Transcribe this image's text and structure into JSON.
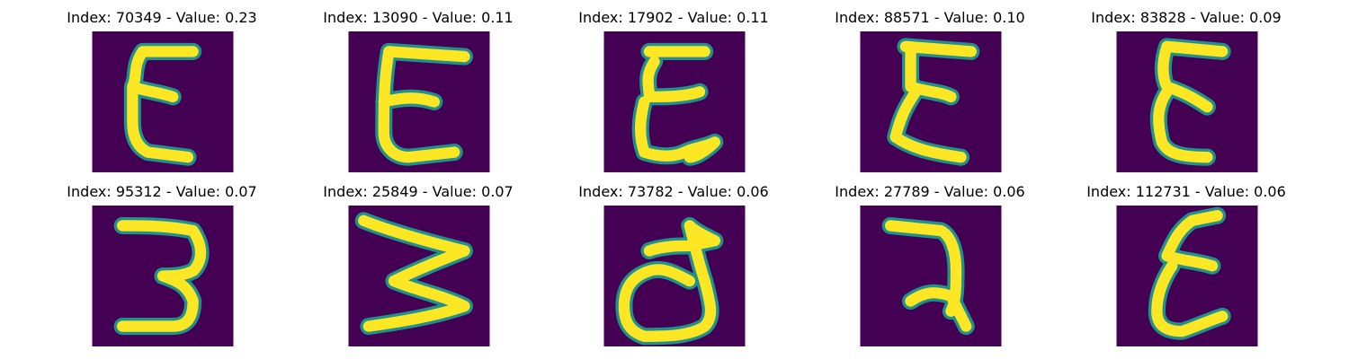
{
  "chart_data": {
    "type": "image_grid",
    "colors": {
      "background": "#440154",
      "stroke_edge": "#21918c",
      "stroke_core": "#fde725"
    },
    "panels": [
      {
        "title": "Index: 70349 - Value: 0.23",
        "index": 70349,
        "value": 0.23,
        "glyph": "E1"
      },
      {
        "title": "Index: 13090 - Value: 0.11",
        "index": 13090,
        "value": 0.11,
        "glyph": "E2"
      },
      {
        "title": "Index: 17902 - Value: 0.11",
        "index": 17902,
        "value": 0.11,
        "glyph": "E3"
      },
      {
        "title": "Index: 88571 - Value: 0.10",
        "index": 88571,
        "value": 0.1,
        "glyph": "E4"
      },
      {
        "title": "Index: 83828 - Value: 0.09",
        "index": 83828,
        "value": 0.09,
        "glyph": "E5"
      },
      {
        "title": "Index: 95312 - Value: 0.07",
        "index": 95312,
        "value": 0.07,
        "glyph": "3"
      },
      {
        "title": "Index: 25849 - Value: 0.07",
        "index": 25849,
        "value": 0.07,
        "glyph": "W"
      },
      {
        "title": "Index: 73782 - Value: 0.06",
        "index": 73782,
        "value": 0.06,
        "glyph": "d"
      },
      {
        "title": "Index: 27789 - Value: 0.06",
        "index": 27789,
        "value": 0.06,
        "glyph": "ra"
      },
      {
        "title": "Index: 112731 - Value: 0.06",
        "index": 112731,
        "value": 0.06,
        "glyph": "E6"
      }
    ]
  }
}
